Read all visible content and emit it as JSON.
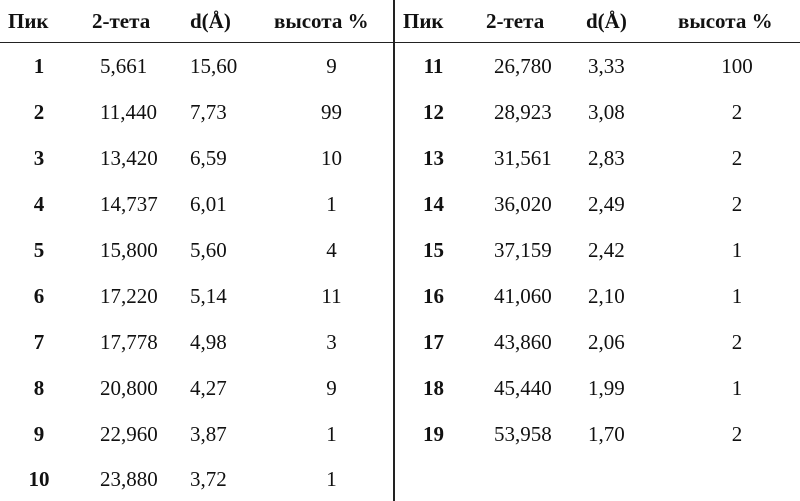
{
  "header": [
    "Пик",
    "2-тета",
    "d(Å)",
    "высота %",
    "Пик",
    "2-тета",
    "d(Å)",
    "высота %"
  ],
  "rows": [
    [
      "1",
      "5,661",
      "15,60",
      "9",
      "11",
      "26,780",
      "3,33",
      "100"
    ],
    [
      "2",
      "11,440",
      "7,73",
      "99",
      "12",
      "28,923",
      "3,08",
      "2"
    ],
    [
      "3",
      "13,420",
      "6,59",
      "10",
      "13",
      "31,561",
      "2,83",
      "2"
    ],
    [
      "4",
      "14,737",
      "6,01",
      "1",
      "14",
      "36,020",
      "2,49",
      "2"
    ],
    [
      "5",
      "15,800",
      "5,60",
      "4",
      "15",
      "37,159",
      "2,42",
      "1"
    ],
    [
      "6",
      "17,220",
      "5,14",
      "11",
      "16",
      "41,060",
      "2,10",
      "1"
    ],
    [
      "7",
      "17,778",
      "4,98",
      "3",
      "17",
      "43,860",
      "2,06",
      "2"
    ],
    [
      "8",
      "20,800",
      "4,27",
      "9",
      "18",
      "45,440",
      "1,99",
      "1"
    ],
    [
      "9",
      "22,960",
      "3,87",
      "1",
      "19",
      "53,958",
      "1,70",
      "2"
    ],
    [
      "10",
      "23,880",
      "3,72",
      "1",
      "",
      "",
      "",
      ""
    ]
  ]
}
